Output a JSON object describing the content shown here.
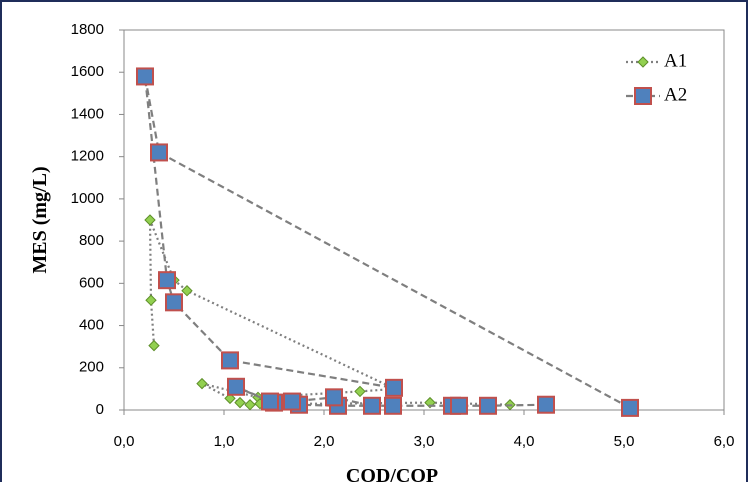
{
  "chart_data": {
    "type": "scatter-line",
    "xlabel": "COD/COP",
    "ylabel": "MES (mg/L)",
    "xlim": [
      0,
      6
    ],
    "ylim": [
      0,
      1800
    ],
    "xticks": [
      {
        "value": 0,
        "label": "0,0"
      },
      {
        "value": 1,
        "label": "1,0"
      },
      {
        "value": 2,
        "label": "2,0"
      },
      {
        "value": 3,
        "label": "3,0"
      },
      {
        "value": 4,
        "label": "4,0"
      },
      {
        "value": 5,
        "label": "5,0"
      },
      {
        "value": 6,
        "label": "6,0"
      }
    ],
    "yticks": [
      0,
      200,
      400,
      600,
      800,
      1000,
      1200,
      1400,
      1600,
      1800
    ],
    "legend": "upper right",
    "series": [
      {
        "name": "A1",
        "color": "#92d050",
        "marker": "diamond",
        "line": "dotted",
        "x": [
          0.3,
          0.27,
          0.26,
          0.5,
          0.63,
          2.71,
          2.36,
          1.34,
          0.78,
          1.06,
          1.16,
          1.26,
          1.36,
          2.1,
          3.06,
          3.86
        ],
        "values": [
          305,
          520,
          900,
          615,
          565,
          100,
          88,
          60,
          125,
          55,
          35,
          25,
          30,
          30,
          35,
          25
        ]
      },
      {
        "name": "A2",
        "color": "#4f81bd",
        "marker": "square",
        "line": "dashed",
        "x": [
          5.06,
          0.35,
          0.21,
          0.43,
          0.5,
          1.06,
          2.7,
          2.69,
          2.14,
          1.75,
          1.5,
          1.12,
          1.46,
          1.68,
          2.1,
          2.48,
          3.28,
          3.35,
          3.64,
          4.22
        ],
        "values": [
          10,
          1220,
          1580,
          615,
          510,
          235,
          105,
          20,
          20,
          25,
          35,
          110,
          40,
          40,
          60,
          20,
          20,
          20,
          20,
          25
        ]
      }
    ]
  }
}
